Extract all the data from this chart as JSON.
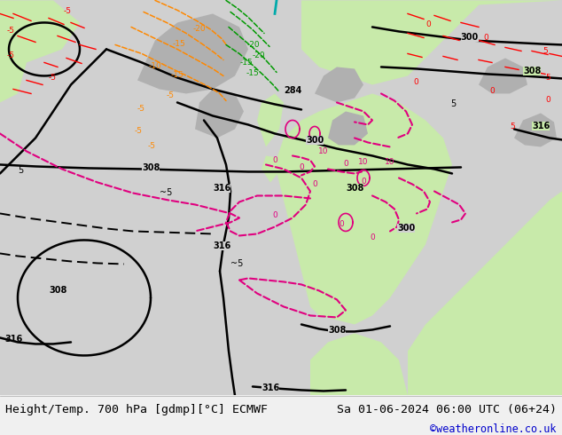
{
  "title_left": "Height/Temp. 700 hPa [gdmp][°C] ECMWF",
  "title_right": "Sa 01-06-2024 06:00 UTC (06+24)",
  "credit": "©weatheronline.co.uk",
  "credit_color": "#0000cc",
  "bg_color": "#d8d8d8",
  "land_green": "#c8eaaa",
  "land_gray": "#b0b0b0",
  "bottom_bg": "#f0f0f0",
  "title_fontsize": 9.5,
  "credit_fontsize": 8.5,
  "fig_width": 6.34,
  "fig_height": 4.9,
  "dpi": 100
}
